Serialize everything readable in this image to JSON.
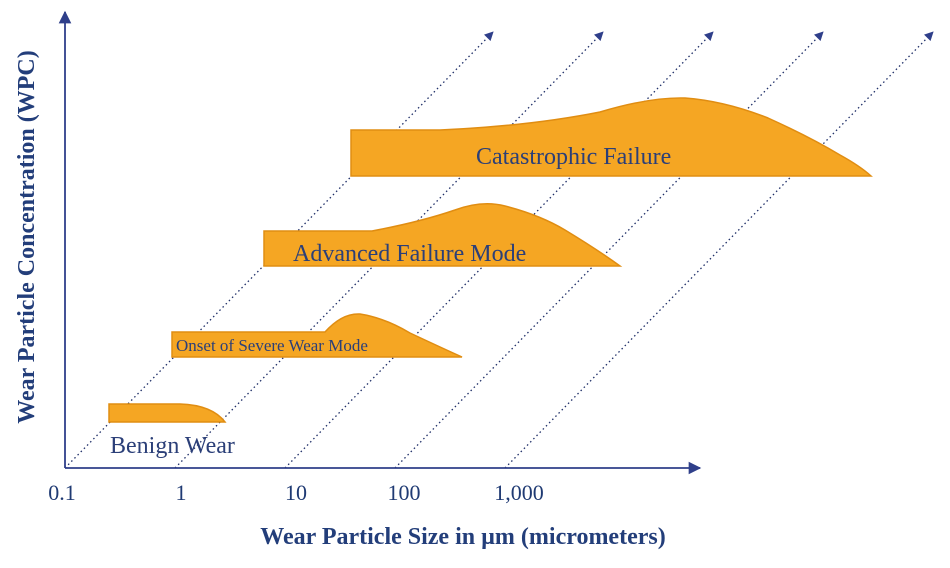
{
  "diagram": {
    "x_axis_title": "Wear Particle Size in µm (micrometers)",
    "y_axis_title": "Wear Particle Concentration (WPC)",
    "x_ticks": [
      "0.1",
      "1",
      "10",
      "100",
      "1,000"
    ],
    "regions": [
      {
        "label": "Benign Wear"
      },
      {
        "label": "Onset of Severe Wear Mode"
      },
      {
        "label": "Advanced Failure Mode"
      },
      {
        "label": "Catastrophic Failure"
      }
    ],
    "colors": {
      "region_fill": "#f5a623",
      "axis": "#2f3f8a",
      "text": "#1f3a73"
    }
  }
}
